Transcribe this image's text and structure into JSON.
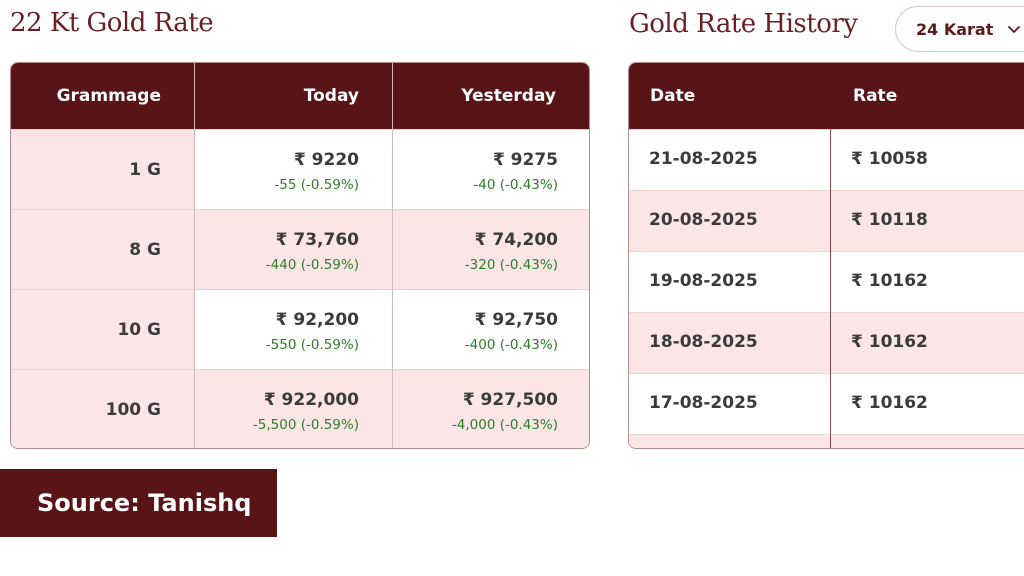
{
  "left_panel": {
    "title": "22 Kt Gold Rate",
    "columns": [
      "Grammage",
      "Today",
      "Yesterday"
    ],
    "rows": [
      {
        "grammage": "1 G",
        "today_price": "₹ 9220",
        "today_change": "-55 (-0.59%)",
        "yesterday_price": "₹ 9275",
        "yesterday_change": "-40 (-0.43%)"
      },
      {
        "grammage": "8 G",
        "today_price": "₹ 73,760",
        "today_change": "-440 (-0.59%)",
        "yesterday_price": "₹ 74,200",
        "yesterday_change": "-320 (-0.43%)"
      },
      {
        "grammage": "10 G",
        "today_price": "₹ 92,200",
        "today_change": "-550 (-0.59%)",
        "yesterday_price": "₹ 92,750",
        "yesterday_change": "-400 (-0.43%)"
      },
      {
        "grammage": "100 G",
        "today_price": "₹ 922,000",
        "today_change": "-5,500 (-0.59%)",
        "yesterday_price": "₹ 927,500",
        "yesterday_change": "-4,000 (-0.43%)"
      }
    ]
  },
  "right_panel": {
    "title": "Gold Rate History",
    "karat_select": {
      "value": "24 Karat",
      "icon": "chevron-down-icon"
    },
    "columns": [
      "Date",
      "Rate"
    ],
    "rows": [
      {
        "date": "21-08-2025",
        "rate": "₹ 10058"
      },
      {
        "date": "20-08-2025",
        "rate": "₹ 10118"
      },
      {
        "date": "19-08-2025",
        "rate": "₹ 10162"
      },
      {
        "date": "18-08-2025",
        "rate": "₹ 10162"
      },
      {
        "date": "17-08-2025",
        "rate": "₹ 10162"
      }
    ]
  },
  "source_label": "Source: Tanishq",
  "colors": {
    "header_bg": "#591418",
    "title_text": "#6b1f24",
    "row_highlight": "#fce5e7",
    "change_text": "#2e7d27"
  }
}
